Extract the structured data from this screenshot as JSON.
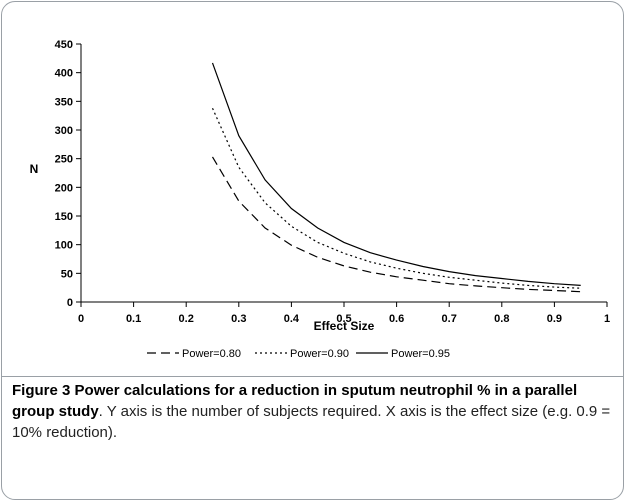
{
  "chart_data": {
    "type": "line",
    "xlabel": "Effect Size",
    "ylabel": "N",
    "xlim": [
      0,
      1
    ],
    "ylim": [
      0,
      450
    ],
    "x_ticks": [
      "0",
      "0.1",
      "0.2",
      "0.3",
      "0.4",
      "0.5",
      "0.6",
      "0.7",
      "0.8",
      "0.9",
      "1"
    ],
    "y_ticks": [
      "0",
      "50",
      "100",
      "150",
      "200",
      "250",
      "300",
      "350",
      "400",
      "450"
    ],
    "grid": false,
    "legend_position": "bottom",
    "x": [
      0.25,
      0.3,
      0.35,
      0.4,
      0.45,
      0.5,
      0.55,
      0.6,
      0.65,
      0.7,
      0.75,
      0.8,
      0.85,
      0.9,
      0.95
    ],
    "series": [
      {
        "name": "Power=0.80",
        "dash": "dashed",
        "values": [
          253,
          176,
          129,
          99,
          78,
          63,
          52,
          44,
          38,
          32,
          28,
          25,
          22,
          20,
          18
        ]
      },
      {
        "name": "Power=0.90",
        "dash": "dotted",
        "values": [
          338,
          235,
          173,
          132,
          104,
          85,
          70,
          59,
          50,
          43,
          38,
          33,
          29,
          26,
          24
        ]
      },
      {
        "name": "Power=0.95",
        "dash": "solid",
        "values": [
          417,
          290,
          213,
          163,
          129,
          104,
          86,
          73,
          62,
          53,
          46,
          41,
          36,
          32,
          29
        ]
      }
    ]
  },
  "caption": {
    "figure_label": "Figure 3",
    "title": "Power calculations for a reduction in sputum neutrophil % in a parallel group study",
    "text": ". Y axis is the number of subjects required. X axis is the effect size (e.g. 0.9 = 10% reduction)."
  }
}
